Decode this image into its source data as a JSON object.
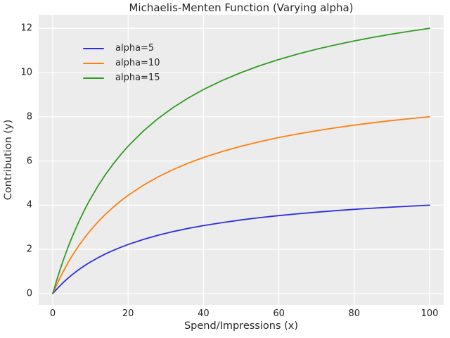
{
  "figure": {
    "title": "Michaelis-Menten Function (Varying alpha)",
    "background": "#ffffff"
  },
  "chart_data": {
    "type": "line",
    "title": "Michaelis-Menten Function (Varying alpha)",
    "xlabel": "Spend/Impressions (x)",
    "ylabel": "Contribution (y)",
    "x_ticks": [
      0,
      20,
      40,
      60,
      80,
      100
    ],
    "y_ticks": [
      0,
      2,
      4,
      6,
      8,
      10,
      12
    ],
    "xlim": [
      -3.73,
      103.73
    ],
    "ylim": [
      -0.51,
      12.61
    ],
    "grid": true,
    "legend_position": "upper-left",
    "style": {
      "axes_background": "#ececec",
      "grid_color": "#ffffff",
      "text_color": "#262626",
      "line_width": 1.8
    },
    "x": [
      0,
      1,
      2,
      3,
      4,
      5,
      6,
      7,
      8,
      9,
      10,
      12,
      14,
      16,
      18,
      20,
      24,
      28,
      32,
      36,
      40,
      45,
      50,
      55,
      60,
      65,
      70,
      75,
      80,
      85,
      90,
      95,
      100
    ],
    "series": [
      {
        "name": "alpha=5",
        "color": "#2d2de0",
        "values": [
          0,
          0.192,
          0.37,
          0.536,
          0.69,
          0.833,
          0.968,
          1.094,
          1.212,
          1.324,
          1.429,
          1.622,
          1.795,
          1.951,
          2.093,
          2.222,
          2.449,
          2.642,
          2.807,
          2.951,
          3.077,
          3.214,
          3.333,
          3.438,
          3.529,
          3.611,
          3.684,
          3.75,
          3.81,
          3.864,
          3.913,
          3.958,
          4.0
        ]
      },
      {
        "name": "alpha=10",
        "color": "#ff7f0e",
        "values": [
          0,
          0.385,
          0.741,
          1.071,
          1.379,
          1.667,
          1.935,
          2.188,
          2.424,
          2.647,
          2.857,
          3.243,
          3.59,
          3.902,
          4.186,
          4.444,
          4.898,
          5.283,
          5.614,
          5.902,
          6.154,
          6.429,
          6.667,
          6.875,
          7.059,
          7.222,
          7.368,
          7.5,
          7.619,
          7.727,
          7.826,
          7.917,
          8.0
        ]
      },
      {
        "name": "alpha=15",
        "color": "#339b27",
        "values": [
          0,
          0.577,
          1.111,
          1.607,
          2.069,
          2.5,
          2.903,
          3.281,
          3.636,
          3.971,
          4.286,
          4.865,
          5.385,
          5.854,
          6.279,
          6.667,
          7.347,
          7.925,
          8.421,
          8.852,
          9.231,
          9.643,
          10.0,
          10.313,
          10.588,
          10.833,
          11.053,
          11.25,
          11.429,
          11.591,
          11.739,
          11.875,
          12.0
        ]
      }
    ]
  }
}
